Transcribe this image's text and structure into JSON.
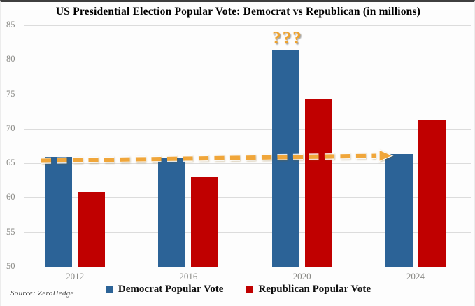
{
  "title": "US Presidential Election Popular Vote: Democrat vs Republican (in millions)",
  "source": "Source: ZeroHedge",
  "annotation": {
    "question_marks": "???",
    "question_marks_color": "#eda22f",
    "question_marks_target": "2020 Democrat bar"
  },
  "legend": {
    "position": "bottom",
    "items": [
      {
        "label": "Democrat Popular Vote",
        "color": "#2c6397"
      },
      {
        "label": "Republican Popular Vote",
        "color": "#c00000"
      }
    ]
  },
  "colors": {
    "democrat": "#2c6397",
    "republican": "#c00000",
    "dashed_arrow": "#f0a63a",
    "gridline": "#dcdcdc",
    "axis_label": "#8a8a86",
    "frame_top": "#3f3f3f"
  },
  "chart_data": {
    "type": "bar",
    "categories": [
      "2012",
      "2016",
      "2020",
      "2024"
    ],
    "series": [
      {
        "name": "Democrat Popular Vote",
        "color": "#2c6397",
        "values": [
          65.9,
          65.8,
          81.3,
          66.3
        ]
      },
      {
        "name": "Republican Popular Vote",
        "color": "#c00000",
        "values": [
          60.9,
          63.0,
          74.2,
          71.2
        ]
      }
    ],
    "title": "US Presidential Election Popular Vote: Democrat vs Republican (in millions)",
    "xlabel": "",
    "ylabel": "",
    "ylim": [
      50,
      85
    ],
    "yticks": [
      85,
      80,
      75,
      70,
      65,
      60,
      55,
      50
    ],
    "grid": true,
    "legend_position": "bottom",
    "annotations": [
      {
        "type": "text",
        "text": "???",
        "above_category": "2020",
        "series": "Democrat Popular Vote",
        "color": "#eda22f"
      },
      {
        "type": "dashed-arrow",
        "from_category": "2012",
        "to_category": "2024",
        "at_value": 66.2,
        "color": "#f0a63a",
        "direction": "right"
      }
    ]
  }
}
